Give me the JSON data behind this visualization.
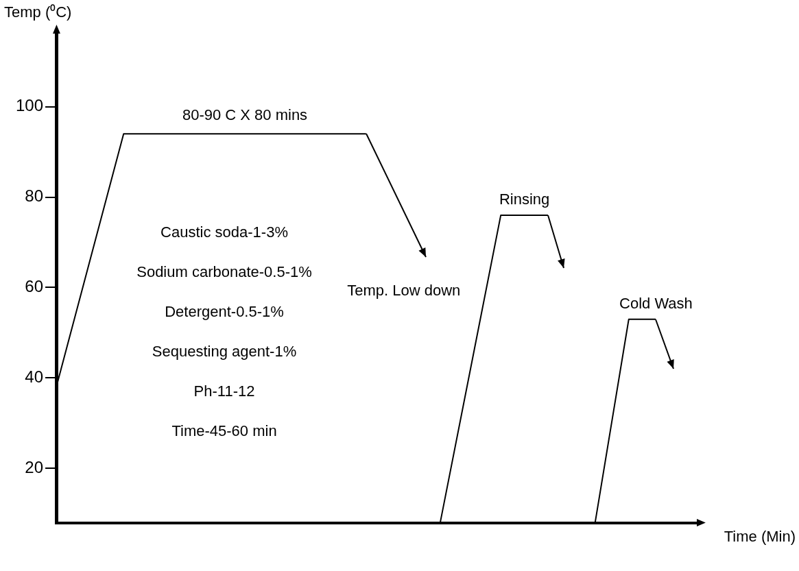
{
  "chart_data": {
    "type": "line",
    "xlabel": "Time (Min)",
    "ylabel": "Temp (⁰C)",
    "categories": [
      null,
      null,
      null,
      null,
      null,
      null,
      null,
      null,
      null,
      null,
      null,
      null,
      null,
      null,
      null,
      null,
      null,
      null,
      null,
      null,
      null,
      null,
      null,
      null,
      null,
      null,
      null,
      null,
      null,
      null,
      null,
      null,
      null,
      null,
      null,
      null,
      null,
      null,
      null,
      null,
      null,
      null,
      null,
      null,
      null,
      null,
      null,
      null,
      null,
      null,
      null,
      null,
      null,
      null,
      null,
      null,
      null,
      null,
      null,
      null,
      null,
      null,
      null,
      null,
      null,
      null,
      null,
      null,
      null,
      null,
      null,
      null,
      null,
      null,
      null,
      null,
      null,
      null,
      null,
      null,
      null,
      null,
      null,
      null,
      null,
      null,
      null,
      null,
      null,
      null,
      null,
      null,
      null,
      null,
      null,
      null
    ],
    "ylim": [
      8,
      116
    ],
    "yticks": [
      20,
      40,
      60,
      80,
      100
    ],
    "grid": false,
    "legend": false,
    "marker": "none",
    "line_style": "solid",
    "series": [
      {
        "color": "#000000",
        "values": [
          38,
          null,
          null,
          null,
          null,
          null,
          null,
          null,
          null,
          null,
          94,
          null,
          null,
          null,
          null,
          null,
          null,
          null,
          null,
          null,
          null,
          null,
          null,
          null,
          null,
          null,
          null,
          null,
          null,
          null,
          null,
          null,
          null,
          null,
          null,
          null,
          null,
          null,
          null,
          null,
          null,
          null,
          null,
          null,
          null,
          null,
          94,
          null,
          null,
          null,
          null,
          null,
          null,
          null,
          null,
          null,
          null,
          null,
          null,
          null,
          null,
          null,
          null,
          null,
          null,
          null,
          null,
          null,
          null,
          null,
          null,
          null,
          null,
          null,
          null,
          null,
          null,
          null,
          null,
          null,
          null,
          null,
          null,
          null,
          null,
          null,
          null,
          null,
          null,
          null,
          null,
          null,
          null,
          null,
          null,
          null
        ]
      },
      {
        "color": "#000000",
        "values": [
          null,
          null,
          null,
          null,
          null,
          null,
          null,
          null,
          null,
          null,
          null,
          null,
          null,
          null,
          null,
          null,
          null,
          null,
          null,
          null,
          null,
          null,
          null,
          null,
          null,
          null,
          null,
          null,
          null,
          null,
          null,
          null,
          null,
          null,
          null,
          null,
          null,
          null,
          null,
          null,
          null,
          null,
          null,
          null,
          null,
          null,
          null,
          null,
          null,
          null,
          null,
          null,
          null,
          null,
          null,
          null,
          null,
          8,
          null,
          null,
          null,
          null,
          null,
          null,
          null,
          null,
          76,
          null,
          null,
          null,
          null,
          null,
          null,
          76,
          null,
          null,
          null,
          null,
          null,
          null,
          null,
          null,
          null,
          null,
          null,
          null,
          null,
          null,
          null,
          null,
          null,
          null,
          null,
          null,
          null,
          null
        ]
      },
      {
        "color": "#000000",
        "values": [
          null,
          null,
          null,
          null,
          null,
          null,
          null,
          null,
          null,
          null,
          null,
          null,
          null,
          null,
          null,
          null,
          null,
          null,
          null,
          null,
          null,
          null,
          null,
          null,
          null,
          null,
          null,
          null,
          null,
          null,
          null,
          null,
          null,
          null,
          null,
          null,
          null,
          null,
          null,
          null,
          null,
          null,
          null,
          null,
          null,
          null,
          null,
          null,
          null,
          null,
          null,
          null,
          null,
          null,
          null,
          null,
          null,
          null,
          null,
          null,
          null,
          null,
          null,
          null,
          null,
          null,
          null,
          null,
          null,
          null,
          null,
          null,
          null,
          null,
          null,
          null,
          null,
          null,
          null,
          null,
          8,
          null,
          null,
          null,
          null,
          53,
          null,
          null,
          null,
          53,
          null,
          null,
          null,
          null,
          null,
          null
        ]
      }
    ],
    "annotations": [
      "80-90 C X 80 mins",
      "Temp. Low down",
      "Rinsing",
      "Cold Wash",
      "Caustic soda-1-3%",
      "Sodium carbonate-0.5-1%",
      "Detergent-0.5-1%",
      "Sequesting agent-1%",
      "Ph-11-12",
      "Time-45-60 min"
    ]
  }
}
